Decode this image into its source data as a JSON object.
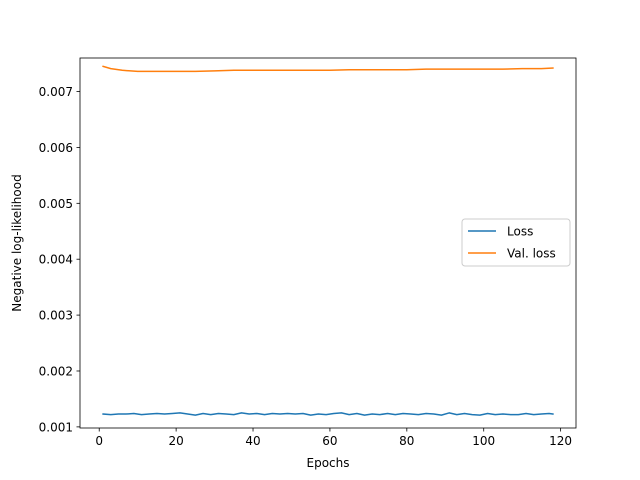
{
  "chart_data": {
    "type": "line",
    "title": "",
    "xlabel": "Epochs",
    "ylabel": "Negative log-likelihood",
    "xlim": [
      -5,
      124
    ],
    "ylim": [
      0.00098,
      0.0076
    ],
    "xticks": [
      0,
      20,
      40,
      60,
      80,
      100,
      120
    ],
    "yticks": [
      0.001,
      0.002,
      0.003,
      0.004,
      0.005,
      0.006,
      0.007
    ],
    "ytick_labels": [
      "0.001",
      "0.002",
      "0.003",
      "0.004",
      "0.005",
      "0.006",
      "0.007"
    ],
    "grid": false,
    "legend_position": "center-right",
    "series": [
      {
        "name": "Loss",
        "color": "#1f77b4",
        "x": [
          1,
          3,
          5,
          7,
          9,
          11,
          13,
          15,
          17,
          19,
          21,
          23,
          25,
          27,
          29,
          31,
          33,
          35,
          37,
          39,
          41,
          43,
          45,
          47,
          49,
          51,
          53,
          55,
          57,
          59,
          61,
          63,
          65,
          67,
          69,
          71,
          73,
          75,
          77,
          79,
          81,
          83,
          85,
          87,
          89,
          91,
          93,
          95,
          97,
          99,
          101,
          103,
          105,
          107,
          109,
          111,
          113,
          115,
          117,
          118
        ],
        "y": [
          0.00123,
          0.00122,
          0.00123,
          0.00123,
          0.00124,
          0.00122,
          0.00123,
          0.00124,
          0.00123,
          0.00124,
          0.00125,
          0.00123,
          0.00121,
          0.00124,
          0.00122,
          0.00124,
          0.00123,
          0.00122,
          0.00125,
          0.00123,
          0.00124,
          0.00122,
          0.00124,
          0.00123,
          0.00124,
          0.00123,
          0.00124,
          0.00121,
          0.00123,
          0.00122,
          0.00124,
          0.00125,
          0.00122,
          0.00124,
          0.00121,
          0.00123,
          0.00122,
          0.00124,
          0.00122,
          0.00124,
          0.00123,
          0.00122,
          0.00124,
          0.00123,
          0.00121,
          0.00125,
          0.00122,
          0.00124,
          0.00122,
          0.00121,
          0.00124,
          0.00122,
          0.00123,
          0.00122,
          0.00122,
          0.00124,
          0.00122,
          0.00123,
          0.00124,
          0.00123
        ]
      },
      {
        "name": "Val. loss",
        "color": "#ff7f0e",
        "x": [
          1,
          3,
          6,
          10,
          15,
          20,
          25,
          30,
          35,
          40,
          45,
          50,
          55,
          60,
          65,
          70,
          75,
          80,
          85,
          90,
          95,
          100,
          105,
          110,
          115,
          118
        ],
        "y": [
          0.00745,
          0.00741,
          0.00738,
          0.00736,
          0.00736,
          0.00736,
          0.00736,
          0.00737,
          0.00738,
          0.00738,
          0.00738,
          0.00738,
          0.00738,
          0.00738,
          0.00739,
          0.00739,
          0.00739,
          0.00739,
          0.0074,
          0.0074,
          0.0074,
          0.0074,
          0.0074,
          0.00741,
          0.00741,
          0.00742
        ]
      }
    ]
  }
}
